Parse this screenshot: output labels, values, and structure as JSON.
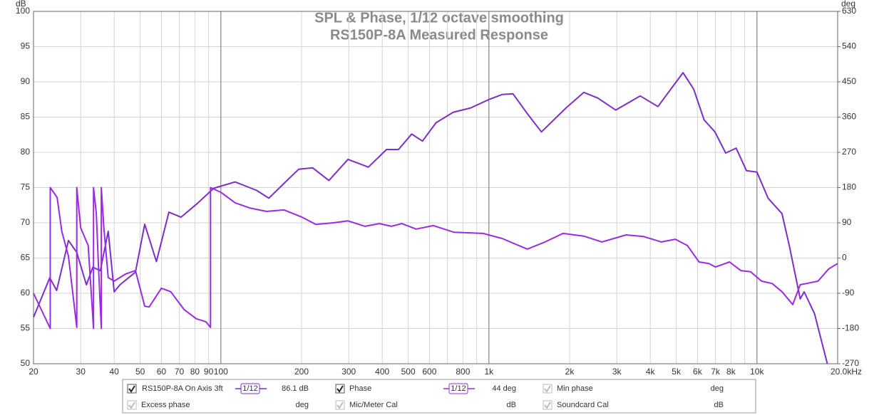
{
  "chart_data": {
    "type": "line",
    "title": "SPL & Phase, 1/12 octave smoothing",
    "subtitle": "RS150P-8A Measured Response",
    "y_label": "dB",
    "y2_label": "deg",
    "xscale": "log",
    "grid": true,
    "xlim": [
      20,
      20000
    ],
    "xticks": [
      20,
      30,
      40,
      50,
      60,
      70,
      80,
      90,
      100,
      200,
      300,
      400,
      500,
      600,
      800,
      {
        "value": 1000,
        "label": "1k"
      },
      {
        "value": 2000,
        "label": "2k"
      },
      {
        "value": 3000,
        "label": "3k"
      },
      {
        "value": 4000,
        "label": "4k"
      },
      {
        "value": 5000,
        "label": "5k"
      },
      {
        "value": 6000,
        "label": "6k"
      },
      {
        "value": 7000,
        "label": "7k"
      },
      {
        "value": 8000,
        "label": "8k"
      },
      {
        "value": 10000,
        "label": "10k"
      },
      {
        "value": 20000,
        "label": "20.0kHz"
      }
    ],
    "xminorticks": [
      700,
      900,
      9000
    ],
    "xmajorgrid": [
      100,
      1000,
      10000
    ],
    "ylim": [
      50,
      100
    ],
    "yticks": [
      50,
      55,
      60,
      65,
      70,
      75,
      80,
      85,
      90,
      95,
      100
    ],
    "y2lim": [
      -270,
      630
    ],
    "y2ticks": [
      -270,
      -180,
      -90,
      0,
      90,
      180,
      270,
      360,
      450,
      540,
      630
    ],
    "series": [
      {
        "name": "RS150P-8A On Axis 3ft",
        "color": "#7a2fc9",
        "x": [
          20,
          23,
          24.4,
          27,
          29,
          31.5,
          33.3,
          35.5,
          38,
          40,
          42,
          48,
          52,
          57.5,
          64,
          71,
          82,
          94,
          100,
          113,
          124,
          136,
          151,
          172,
          195,
          220,
          253,
          298,
          355,
          415,
          460,
          515,
          565,
          635,
          737,
          855,
          1000,
          1120,
          1230,
          1390,
          1570,
          1940,
          2260,
          2550,
          2970,
          3670,
          4270,
          5300,
          5800,
          6350,
          6970,
          7640,
          8360,
          9140,
          10000,
          11000,
          12400,
          13200,
          14500,
          15000,
          16400,
          18300
        ],
        "values": [
          56.6,
          62.2,
          60.4,
          67.5,
          65.8,
          61.2,
          63.7,
          63.2,
          68.8,
          60.2,
          61.2,
          63,
          69.8,
          64.5,
          71.5,
          70.8,
          72.8,
          74.9,
          75.2,
          75.8,
          75.2,
          74.6,
          73.5,
          75.6,
          77.6,
          77.8,
          76,
          79,
          77.9,
          80.4,
          80.4,
          82.6,
          81.6,
          84.2,
          85.7,
          86.3,
          87.5,
          88.2,
          88.3,
          85.5,
          82.9,
          86.3,
          88.5,
          87.7,
          86,
          88,
          86.5,
          91.3,
          89,
          84.6,
          82.9,
          79.9,
          80.6,
          77.4,
          77.2,
          73.5,
          71.3,
          66.8,
          59.2,
          60.2,
          57.1,
          50
        ]
      },
      {
        "name": "Phase",
        "color": "#9a2be2",
        "axis": "y2",
        "x": [
          20,
          23.1,
          23.1,
          24.5,
          25.5,
          27,
          29,
          29,
          30,
          32,
          33.5,
          33.5,
          34.3,
          35,
          35.8,
          35.8,
          36.6,
          38,
          40,
          44,
          48,
          52,
          54,
          60,
          65,
          73,
          81,
          88,
          91.5,
          91.5,
          100,
          113,
          128,
          148,
          172,
          200,
          226,
          263,
          298,
          345,
          390,
          433,
          473,
          535,
          620,
          740,
          950,
          1120,
          1390,
          1620,
          1890,
          2260,
          2640,
          3250,
          3780,
          4400,
          4960,
          5500,
          6080,
          6620,
          7000,
          7900,
          8700,
          9470,
          10400,
          11400,
          12400,
          13600,
          14500,
          15300,
          16900,
          18500,
          20000
        ],
        "values": [
          -90,
          -180,
          180,
          155,
          68,
          5,
          -177,
          180,
          77,
          32,
          -180,
          180,
          114,
          -32,
          -180,
          180,
          77,
          -50,
          -59,
          -41,
          -32,
          -123,
          -125,
          -77,
          -86,
          -132,
          -155,
          -163,
          -177,
          180,
          168,
          141,
          128,
          119,
          123,
          105,
          86,
          90,
          95,
          81,
          88,
          81,
          88,
          74,
          83,
          66,
          63,
          50,
          23,
          41,
          63,
          56,
          41,
          59,
          55,
          41,
          48,
          32,
          -10,
          -14,
          -23,
          -10,
          -32,
          -35,
          -59,
          -65,
          -86,
          -119,
          -68,
          -65,
          -59,
          -28,
          -14
        ]
      }
    ],
    "legend": {
      "smoothing": "1/12",
      "readouts": [
        "86.1 dB",
        "44 deg"
      ],
      "others": [
        {
          "name": "Min phase",
          "unit": "deg"
        },
        {
          "name": "Excess phase",
          "unit": "deg"
        },
        {
          "name": "Mic/Meter Cal",
          "unit": "dB"
        },
        {
          "name": "Soundcard Cal",
          "unit": "dB"
        }
      ]
    }
  }
}
